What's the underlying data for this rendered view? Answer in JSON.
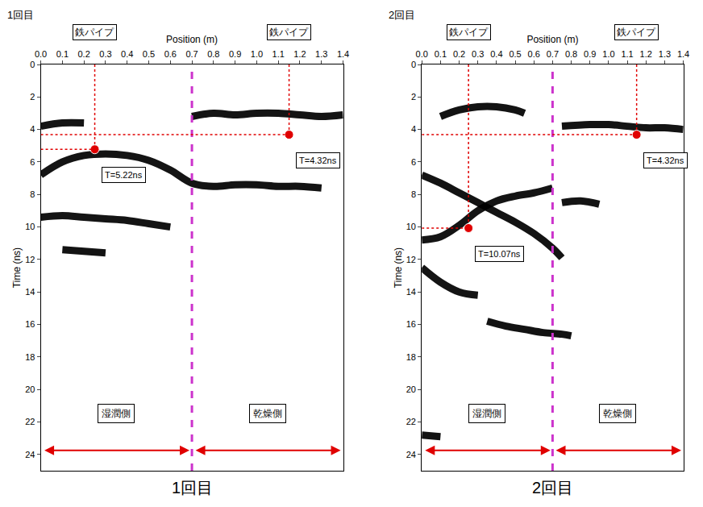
{
  "chart_data": [
    {
      "type": "line",
      "title": "1回目",
      "panel_label": "1回目",
      "x_label": "Position (m)",
      "y_label": "Time (ns)",
      "xlim": [
        0,
        1.4
      ],
      "xticks": [
        {
          "value": 0,
          "label": "0.0"
        },
        0.1,
        0.2,
        0.3,
        0.4,
        0.5,
        0.6,
        0.7,
        0.8,
        0.9,
        {
          "value": 1,
          "label": "1.0"
        },
        1.1,
        1.2,
        1.3,
        1.4
      ],
      "ylim": [
        25,
        0
      ],
      "yticks": [
        0,
        2,
        4,
        6,
        8,
        10,
        12,
        14,
        16,
        18,
        20,
        22,
        24
      ],
      "grid": false,
      "series": [
        {
          "color": "#000000",
          "x": [
            0.7,
            0.8,
            0.9,
            1.0,
            1.1,
            1.2,
            1.3,
            1.4
          ],
          "values": [
            3.2,
            3.0,
            3.1,
            3.0,
            3.0,
            3.1,
            3.2,
            3.1
          ]
        },
        {
          "color": "#000000",
          "x": [
            0.0,
            0.1,
            0.2,
            0.3,
            0.4,
            0.5,
            0.6,
            0.7,
            0.8,
            0.9,
            1.0,
            1.1,
            1.2,
            1.3
          ],
          "values": [
            6.8,
            6.0,
            5.6,
            5.5,
            5.6,
            5.9,
            6.5,
            7.3,
            7.5,
            7.4,
            7.4,
            7.5,
            7.5,
            7.6
          ]
        },
        {
          "color": "#000000",
          "x": [
            0.0,
            0.1,
            0.2,
            0.3,
            0.4,
            0.5,
            0.6
          ],
          "values": [
            9.4,
            9.3,
            9.4,
            9.5,
            9.6,
            9.8,
            10.0
          ]
        },
        {
          "color": "#000000",
          "x": [
            0.0,
            0.1,
            0.2
          ],
          "values": [
            3.8,
            3.6,
            3.6
          ]
        },
        {
          "color": "#000000",
          "x": [
            0.1,
            0.2,
            0.3
          ],
          "values": [
            11.4,
            11.5,
            11.6
          ]
        }
      ],
      "pipes": [
        {
          "label": "鉄パイプ",
          "x": 0.25,
          "t": 5.22,
          "text": "T=5.22ns",
          "color": "#e00000"
        },
        {
          "label": "鉄パイプ",
          "x": 1.15,
          "t": 4.32,
          "text": "T=4.32ns",
          "color": "#e00000"
        }
      ],
      "regions": [
        {
          "label": "湿潤側",
          "range": [
            0,
            0.7
          ]
        },
        {
          "label": "乾燥側",
          "range": [
            0.7,
            1.4
          ]
        }
      ],
      "boundary_color": "#cc33cc",
      "arrow_color": "#e00000"
    },
    {
      "type": "line",
      "title": "2回目",
      "panel_label": "2回目",
      "x_label": "Position (m)",
      "y_label": "Time (ns)",
      "xlim": [
        0,
        1.4
      ],
      "xticks": [
        {
          "value": 0,
          "label": "0.0"
        },
        0.1,
        0.2,
        0.3,
        0.4,
        0.5,
        0.6,
        0.7,
        0.8,
        0.9,
        {
          "value": 1,
          "label": "1.0"
        },
        1.1,
        1.2,
        1.3,
        1.4
      ],
      "ylim": [
        25,
        0
      ],
      "yticks": [
        0,
        2,
        4,
        6,
        8,
        10,
        12,
        14,
        16,
        18,
        20,
        22,
        24
      ],
      "grid": false,
      "series": [
        {
          "color": "#000000",
          "x": [
            0.1,
            0.2,
            0.3,
            0.4,
            0.5,
            0.55
          ],
          "values": [
            3.2,
            2.8,
            2.6,
            2.6,
            2.8,
            3.0
          ]
        },
        {
          "color": "#000000",
          "x": [
            0.75,
            0.9,
            1.0,
            1.1,
            1.2,
            1.3,
            1.4
          ],
          "values": [
            3.8,
            3.7,
            3.7,
            3.8,
            3.9,
            3.9,
            4.0
          ]
        },
        {
          "color": "#000000",
          "x": [
            0.0,
            0.1,
            0.2,
            0.3,
            0.4,
            0.5,
            0.6,
            0.7,
            0.75
          ],
          "values": [
            6.8,
            7.3,
            7.9,
            8.5,
            9.1,
            9.7,
            10.4,
            11.3,
            11.9
          ]
        },
        {
          "color": "#000000",
          "x": [
            0.0,
            0.1,
            0.2,
            0.3,
            0.4,
            0.5,
            0.6,
            0.7
          ],
          "values": [
            10.8,
            10.6,
            9.9,
            9.0,
            8.4,
            8.1,
            7.9,
            7.6
          ]
        },
        {
          "color": "#000000",
          "x": [
            0.0,
            0.1,
            0.2,
            0.3
          ],
          "values": [
            12.5,
            13.4,
            14.0,
            14.2
          ]
        },
        {
          "color": "#000000",
          "x": [
            0.35,
            0.45,
            0.55,
            0.65,
            0.75,
            0.8
          ],
          "values": [
            15.8,
            16.1,
            16.3,
            16.5,
            16.6,
            16.7
          ]
        },
        {
          "color": "#000000",
          "x": [
            0.75,
            0.85,
            0.95
          ],
          "values": [
            8.5,
            8.4,
            8.6
          ]
        },
        {
          "color": "#000000",
          "x": [
            0.0,
            0.1
          ],
          "values": [
            22.8,
            22.9
          ]
        }
      ],
      "pipes": [
        {
          "label": "鉄パイプ",
          "x": 0.25,
          "t": 10.07,
          "text": "T=10.07ns",
          "color": "#e00000"
        },
        {
          "label": "鉄パイプ",
          "x": 1.15,
          "t": 4.32,
          "text": "T=4.32ns",
          "color": "#e00000"
        }
      ],
      "regions": [
        {
          "label": "湿潤側",
          "range": [
            0,
            0.7
          ]
        },
        {
          "label": "乾燥側",
          "range": [
            0.7,
            1.4
          ]
        }
      ],
      "boundary_color": "#cc33cc",
      "arrow_color": "#e00000"
    }
  ]
}
